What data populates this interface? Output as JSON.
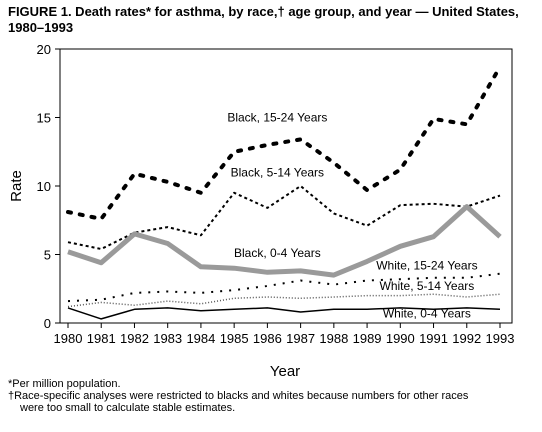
{
  "title": "FIGURE 1. Death rates* for asthma, by race,† age group, and year — United States, 1980–1993",
  "footnotes": [
    "*Per million population.",
    "†Race-specific analyses were restricted to blacks and whites because numbers for other races",
    "were too small to calculate stable estimates."
  ],
  "chart_data": {
    "type": "line",
    "xlabel": "Year",
    "ylabel": "Rate",
    "ylim": [
      0,
      20
    ],
    "yticks": [
      0,
      5,
      10,
      15,
      20
    ],
    "x": [
      1980,
      1981,
      1982,
      1983,
      1984,
      1985,
      1986,
      1987,
      1988,
      1989,
      1990,
      1991,
      1992,
      1993
    ],
    "series": [
      {
        "name": "Black, 15-24 Years",
        "style": "heavy-dash",
        "values": [
          8.1,
          7.6,
          10.9,
          10.3,
          9.5,
          12.5,
          13.0,
          13.4,
          11.7,
          9.7,
          11.2,
          14.9,
          14.5,
          18.7
        ]
      },
      {
        "name": "Black, 5-14 Years",
        "style": "dash",
        "values": [
          5.9,
          5.4,
          6.6,
          7.0,
          6.4,
          9.5,
          8.4,
          10.0,
          8.0,
          7.1,
          8.6,
          8.7,
          8.5,
          9.3
        ]
      },
      {
        "name": "Black, 0-4 Years",
        "style": "wide-band",
        "values": [
          5.2,
          4.4,
          6.5,
          5.8,
          4.1,
          4.0,
          3.7,
          3.8,
          3.5,
          4.5,
          5.6,
          6.3,
          8.5,
          6.3
        ]
      },
      {
        "name": "White, 15-24 Years",
        "style": "dot-dash",
        "values": [
          1.6,
          1.7,
          2.2,
          2.3,
          2.2,
          2.4,
          2.7,
          3.1,
          2.8,
          3.1,
          3.2,
          3.3,
          3.3,
          3.6
        ]
      },
      {
        "name": "White, 5-14 Years",
        "style": "wave",
        "values": [
          1.2,
          1.5,
          1.3,
          1.6,
          1.4,
          1.8,
          1.9,
          1.8,
          1.9,
          2.0,
          2.0,
          2.1,
          1.9,
          2.1
        ]
      },
      {
        "name": "White, 0-4 Years",
        "style": "solid",
        "values": [
          1.1,
          0.3,
          1.0,
          1.1,
          0.9,
          1.0,
          1.1,
          0.8,
          1.0,
          1.0,
          1.1,
          1.0,
          1.1,
          1.0
        ]
      }
    ],
    "annotations": [
      {
        "text": "Black, 15-24 Years",
        "series": 0,
        "anchor_x": 1986.3,
        "anchor_y": 14.7
      },
      {
        "text": "Black, 5-14 Years",
        "series": 1,
        "anchor_x": 1986.3,
        "anchor_y": 10.7
      },
      {
        "text": "Black, 0-4 Years",
        "series": 2,
        "anchor_x": 1986.3,
        "anchor_y": 4.8
      },
      {
        "text": "White, 15-24 Years",
        "series": 3,
        "anchor_x": 1990.8,
        "anchor_y": 3.9
      },
      {
        "text": "White, 5-14 Years",
        "series": 4,
        "anchor_x": 1990.8,
        "anchor_y": 2.4
      },
      {
        "text": "White, 0-4 Years",
        "series": 5,
        "anchor_x": 1990.8,
        "anchor_y": 0.4
      }
    ],
    "grid": false,
    "legend": "none"
  }
}
